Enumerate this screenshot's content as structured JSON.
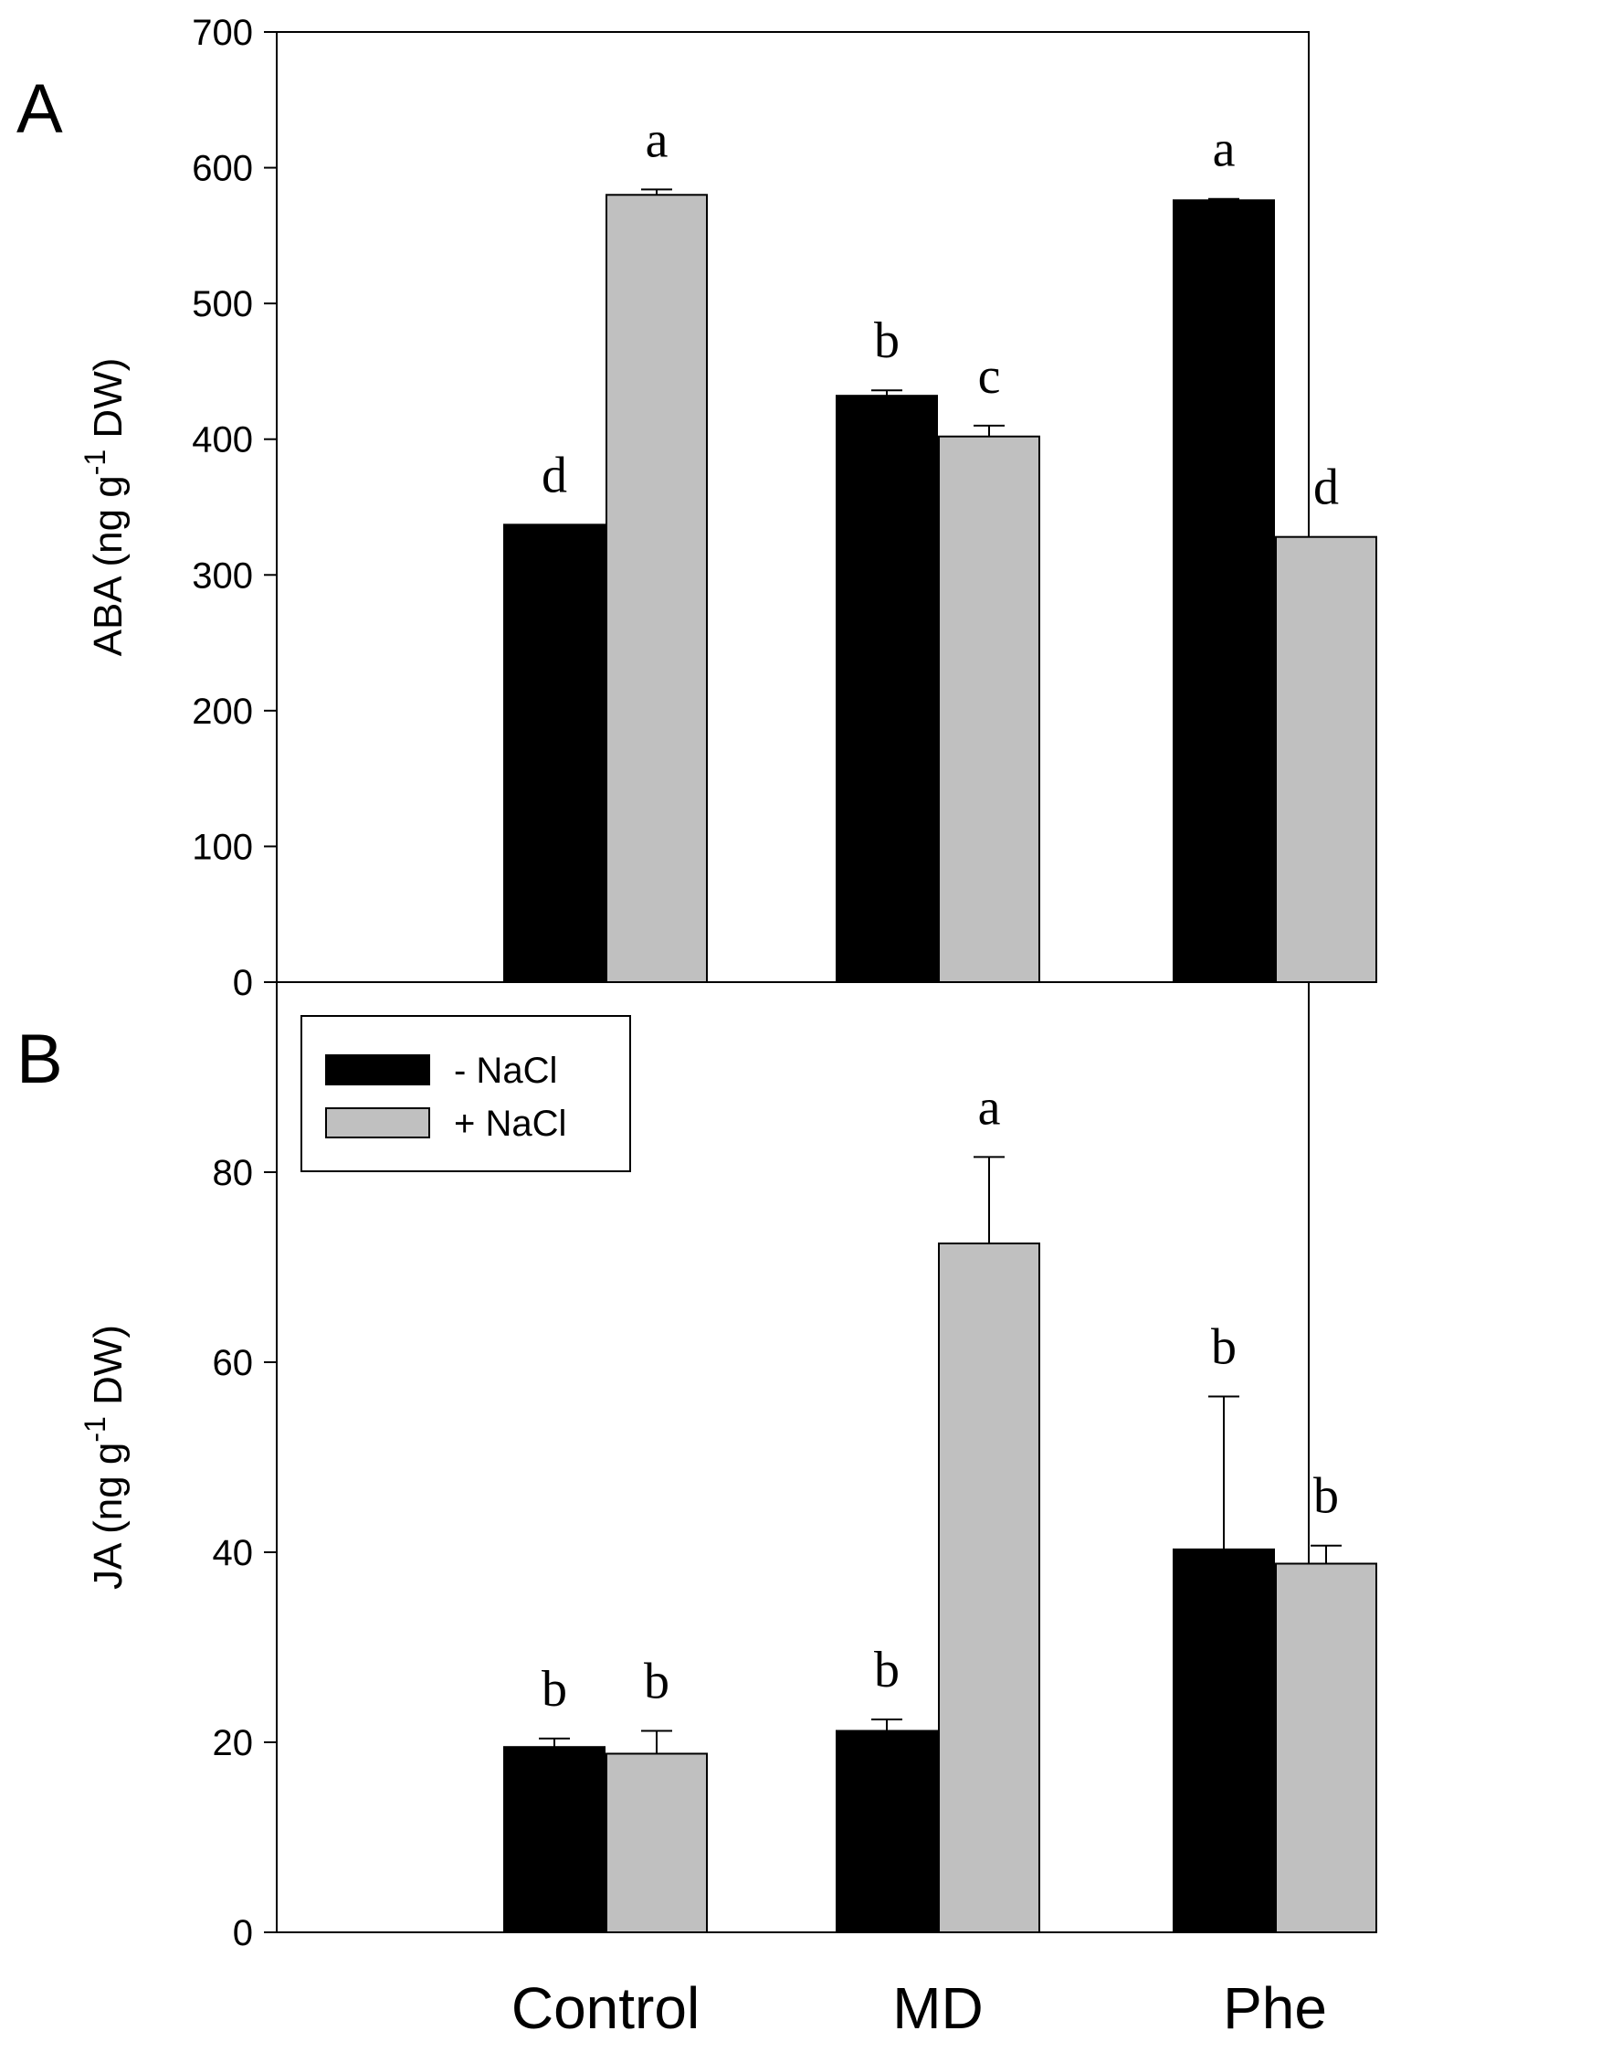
{
  "colors": {
    "series_no_nacl": "#000000",
    "series_nacl": "#c0c0c0",
    "axis": "#000000",
    "background": "#ffffff"
  },
  "chart_data": [
    {
      "type": "bar",
      "panel_label": "A",
      "title": "",
      "xlabel": "",
      "ylabel": {
        "prefix": "ABA (ng g",
        "sup": "-1",
        "suffix": " DW)"
      },
      "ylim": [
        0,
        700
      ],
      "yticks": [
        0,
        100,
        200,
        300,
        400,
        500,
        600,
        700
      ],
      "ytick_labels": [
        "0",
        "100",
        "200",
        "300",
        "400",
        "500",
        "600",
        "700"
      ],
      "grid": false,
      "legend": null,
      "categories": [
        "Control",
        "MD",
        "Phe"
      ],
      "series": [
        {
          "name": "- NaCl",
          "color_key": "series_no_nacl",
          "values": [
            337,
            432,
            576
          ],
          "errors": [
            0,
            4,
            1
          ],
          "letters": [
            "d",
            "b",
            "a"
          ]
        },
        {
          "name": "+ NaCl",
          "color_key": "series_nacl",
          "values": [
            580,
            402,
            328
          ],
          "errors": [
            4,
            8,
            0
          ],
          "letters": [
            "a",
            "c",
            "d"
          ]
        }
      ]
    },
    {
      "type": "bar",
      "panel_label": "B",
      "title": "",
      "xlabel": "",
      "ylabel": {
        "prefix": "JA (ng g",
        "sup": "-1",
        "suffix": " DW)"
      },
      "ylim": [
        0,
        100
      ],
      "yticks": [
        0,
        20,
        40,
        60,
        80
      ],
      "ytick_labels": [
        "0",
        "20",
        "40",
        "60",
        "80"
      ],
      "grid": false,
      "legend": {
        "position": "top-left",
        "entries": [
          "- NaCl",
          "+ NaCl"
        ]
      },
      "categories": [
        "Control",
        "MD",
        "Phe"
      ],
      "series": [
        {
          "name": "- NaCl",
          "color_key": "series_no_nacl",
          "values": [
            19.5,
            21.2,
            40.3
          ],
          "errors": [
            0.9,
            1.2,
            16.1
          ],
          "letters": [
            "b",
            "b",
            "b"
          ]
        },
        {
          "name": "+ NaCl",
          "color_key": "series_nacl",
          "values": [
            18.8,
            72.5,
            38.8
          ],
          "errors": [
            2.4,
            9.1,
            1.9
          ],
          "letters": [
            "b",
            "a",
            "b"
          ]
        }
      ]
    }
  ],
  "x_axis": {
    "category_labels": [
      "Control",
      "MD",
      "Phe"
    ]
  }
}
